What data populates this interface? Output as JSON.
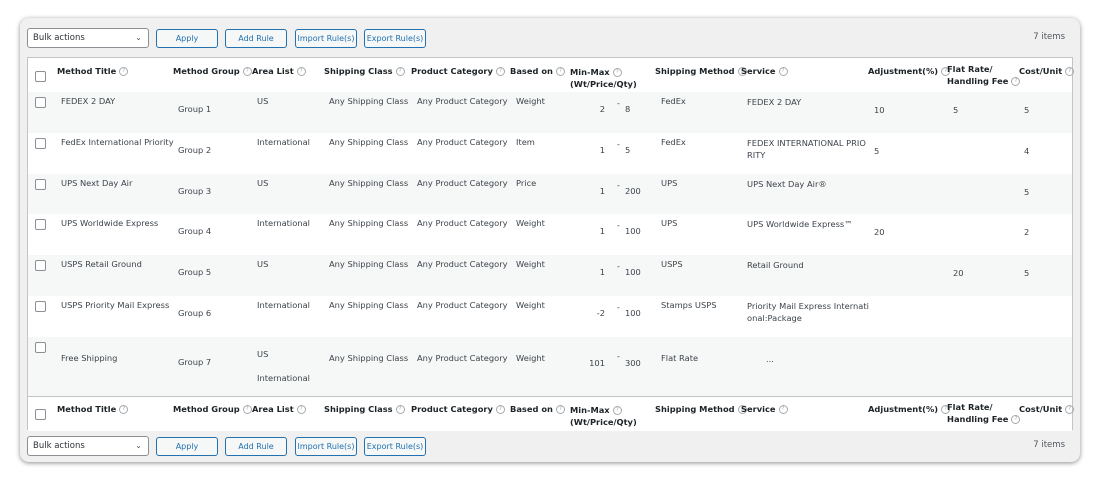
{
  "toolbar": {
    "bulk_actions": "Bulk actions",
    "apply": "Apply",
    "add_rule": "Add Rule",
    "import_rules": "Import Rule(s)",
    "export_rules": "Export Rule(s)",
    "items_count": "7 items"
  },
  "columns": {
    "method_title": "Method Title",
    "method_group": "Method Group",
    "area_list": "Area List",
    "shipping_class": "Shipping Class",
    "product_category": "Product Category",
    "based_on": "Based on",
    "min_max_1": "Min-Max",
    "min_max_2": "(Wt/Price/Qty)",
    "shipping_method": "Shipping Method",
    "service": "Service",
    "adjustment": "Adjustment(%)",
    "flat_rate_1": "Flat Rate/",
    "flat_rate_2": "Handling Fee",
    "cost_unit": "Cost/Unit",
    "help_glyph": "?"
  },
  "rows": [
    {
      "title": "FEDEX 2 DAY",
      "group": "Group 1",
      "area": "US",
      "area2": "",
      "shipping_class": "Any Shipping Class",
      "product_category": "Any Product Category",
      "based_on": "Weight",
      "min": "2",
      "max": "8",
      "method": "FedEx",
      "service": "FEDEX 2 DAY",
      "service2": "",
      "adjustment": "10",
      "flat_rate": "5",
      "cost_unit": "5"
    },
    {
      "title": "FedEx International Priority",
      "group": "Group 2",
      "area": "International",
      "area2": "",
      "shipping_class": "Any Shipping Class",
      "product_category": "Any Product Category",
      "based_on": "Item",
      "min": "1",
      "max": "5",
      "method": "FedEx",
      "service": "FEDEX INTERNATIONAL PRIO",
      "service2": "RITY",
      "adjustment": "5",
      "flat_rate": "",
      "cost_unit": "4"
    },
    {
      "title": "UPS Next Day Air",
      "group": "Group 3",
      "area": "US",
      "area2": "",
      "shipping_class": "Any Shipping Class",
      "product_category": "Any Product Category",
      "based_on": "Price",
      "min": "1",
      "max": "200",
      "method": "UPS",
      "service": "UPS Next Day Air®",
      "service2": "",
      "adjustment": "",
      "flat_rate": "",
      "cost_unit": "5"
    },
    {
      "title": "UPS Worldwide Express",
      "group": "Group 4",
      "area": "International",
      "area2": "",
      "shipping_class": "Any Shipping Class",
      "product_category": "Any Product Category",
      "based_on": "Weight",
      "min": "1",
      "max": "100",
      "method": "UPS",
      "service": "UPS Worldwide Express™",
      "service2": "",
      "adjustment": "20",
      "flat_rate": "",
      "cost_unit": "2"
    },
    {
      "title": "USPS Retail Ground",
      "group": "Group 5",
      "area": "US",
      "area2": "",
      "shipping_class": "Any Shipping Class",
      "product_category": "Any Product Category",
      "based_on": "Weight",
      "min": "1",
      "max": "100",
      "method": "USPS",
      "service": "Retail Ground",
      "service2": "",
      "adjustment": "",
      "flat_rate": "20",
      "cost_unit": "5"
    },
    {
      "title": "USPS Priority Mail Express",
      "group": "Group 6",
      "area": "International",
      "area2": "",
      "shipping_class": "Any Shipping Class",
      "product_category": "Any Product Category",
      "based_on": "Weight",
      "min": "-2",
      "max": "100",
      "method": "Stamps USPS",
      "service": "Priority Mail Express Internati",
      "service2": "onal:Package",
      "adjustment": "",
      "flat_rate": "",
      "cost_unit": ""
    },
    {
      "title": "Free Shipping",
      "group": "Group 7",
      "area": "US",
      "area2": "International",
      "shipping_class": "Any Shipping Class",
      "product_category": "Any Product Category",
      "based_on": "Weight",
      "min": "101",
      "max": "300",
      "method": "Flat Rate",
      "service": "...",
      "service2": "",
      "adjustment": "",
      "flat_rate": "",
      "cost_unit": ""
    }
  ],
  "separator": "-"
}
